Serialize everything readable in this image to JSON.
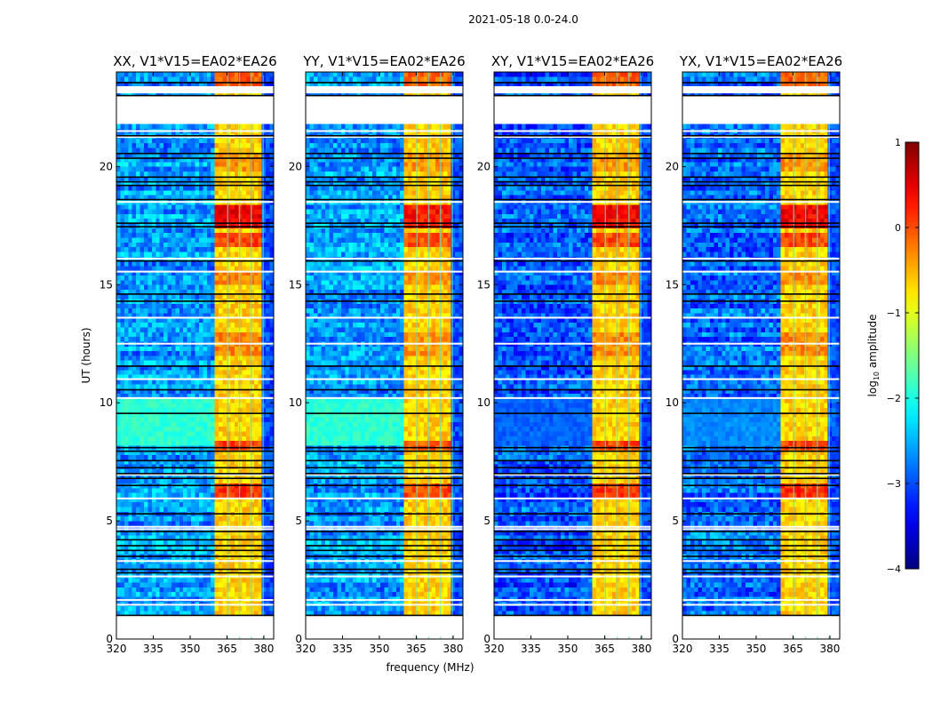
{
  "chart_data": {
    "type": "heatmap",
    "title": "2021-05-18 0.0-24.0",
    "xlabel": "frequency (MHz)",
    "ylabel": "UT (hours)",
    "xlim": [
      320,
      384
    ],
    "ylim": [
      0,
      24
    ],
    "xticks": [
      320,
      335,
      350,
      365,
      380
    ],
    "yticks": [
      0,
      5,
      10,
      15,
      20
    ],
    "colorbar": {
      "label_prefix": "log",
      "label_sub": "10",
      "label_suffix": " amplitude",
      "colormap": "jet",
      "vmin": -4,
      "vmax": 1,
      "ticks": [
        1,
        0,
        -1,
        -2,
        -3,
        -4
      ]
    },
    "grid_step": {
      "freq_mhz": 1.6,
      "time_hours": 0.2
    },
    "panels": [
      {
        "title": "XX, V1*V15=EA02*EA26",
        "background_level": -2.6,
        "band_gain": 1.0,
        "midday_level": -1.9
      },
      {
        "title": "YY, V1*V15=EA02*EA26",
        "background_level": -2.6,
        "band_gain": 0.85,
        "midday_level": -1.9
      },
      {
        "title": "XY, V1*V15=EA02*EA26",
        "background_level": -2.95,
        "band_gain": 0.95,
        "midday_level": -2.9
      },
      {
        "title": "YX, V1*V15=EA02*EA26",
        "background_level": -2.85,
        "band_gain": 0.95,
        "midday_level": -2.7
      }
    ],
    "model": {
      "band_mhz": [
        360.5,
        380.0
      ],
      "band_level": -0.65,
      "above_band_level": -3.0,
      "subband_edges_mhz": [
        365.3,
        370.1,
        374.9,
        379.7
      ],
      "midday_hours": [
        8.3,
        10.1
      ],
      "flagged_hours": [
        [
          0.1,
          1.0
        ],
        [
          21.8,
          23.0
        ],
        [
          23.1,
          23.4
        ]
      ],
      "band_hot_hours": [
        {
          "range": [
            17.3,
            18.4
          ],
          "boost": 1.1
        },
        {
          "range": [
            16.5,
            17.2
          ],
          "boost": 0.7
        },
        {
          "range": [
            23.4,
            24.0
          ],
          "boost": 0.6
        },
        {
          "range": [
            6.0,
            6.6
          ],
          "boost": 0.8
        },
        {
          "range": [
            8.1,
            8.5
          ],
          "boost": 0.7
        },
        {
          "range": [
            12.0,
            13.0
          ],
          "boost": 0.35
        },
        {
          "range": [
            15.0,
            15.5
          ],
          "boost": 0.35
        },
        {
          "range": [
            19.8,
            20.6
          ],
          "boost": 0.3
        }
      ],
      "black_line_hours": [
        23.55,
        23.0,
        21.3,
        20.55,
        20.35,
        19.55,
        19.35,
        19.2,
        18.6,
        17.6,
        17.45,
        16.0,
        14.6,
        14.3,
        11.55,
        10.55,
        9.55,
        8.1,
        7.95,
        7.55,
        7.25,
        7.0,
        6.8,
        6.5,
        5.3,
        4.55,
        4.2,
        3.95,
        3.75,
        3.5,
        2.95,
        2.8,
        1.0
      ],
      "white_line_hours": [
        21.5,
        21.25,
        18.5,
        16.1,
        15.55,
        13.6,
        12.5,
        11.0,
        10.2,
        6.95,
        5.95,
        4.75,
        4.65,
        3.3,
        2.65,
        1.65,
        1.45
      ]
    }
  }
}
